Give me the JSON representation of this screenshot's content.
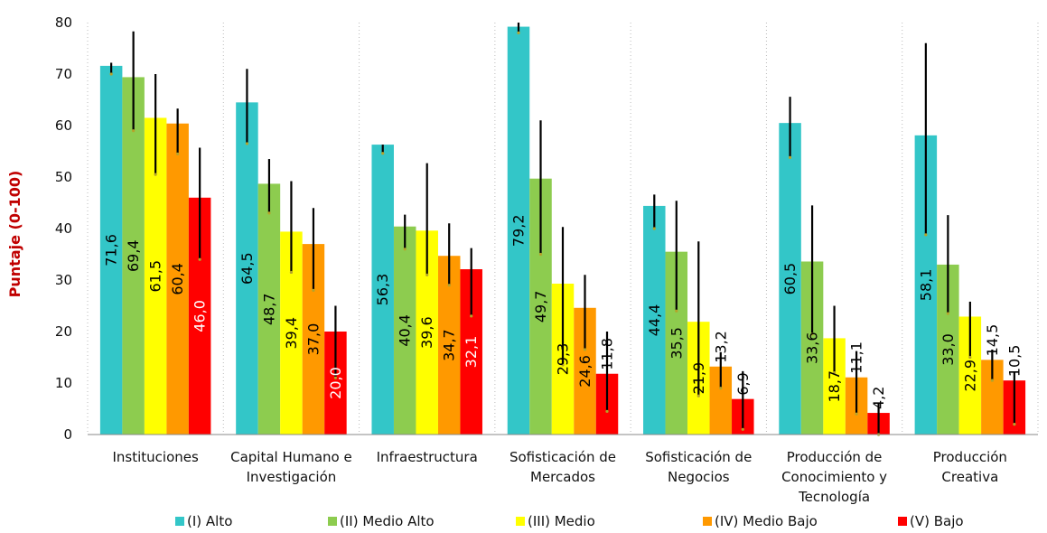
{
  "chart_data": {
    "type": "bar",
    "ylabel": "Puntaje (0-100)",
    "ylim": [
      0,
      80
    ],
    "yticks": [
      0,
      10,
      20,
      30,
      40,
      50,
      60,
      70,
      80
    ],
    "grid": "vertical dotted separators between categories",
    "legend_position": "bottom",
    "value_label_orientation": "vertical",
    "categories": [
      [
        "Instituciones"
      ],
      [
        "Capital Humano e",
        "Investigación"
      ],
      [
        "Infraestructura"
      ],
      [
        "Sofisticación de",
        "Mercados"
      ],
      [
        "Sofisticación de",
        "Negocios"
      ],
      [
        "Producción de",
        "Conocimiento y",
        "Tecnología"
      ],
      [
        "Producción",
        "Creativa"
      ]
    ],
    "series": [
      {
        "name": "(I) Alto",
        "color": "#33c6c8",
        "values": [
          71.6,
          64.5,
          56.3,
          79.2,
          44.4,
          60.5,
          58.1
        ],
        "labels": [
          "71,6",
          "64,5",
          "56,3",
          "79,2",
          "44,4",
          "60,5",
          "58,1"
        ],
        "err_low": [
          70.0,
          56.5,
          54.6,
          78.0,
          40.0,
          53.8,
          38.8
        ],
        "err_high": [
          72.2,
          71.0,
          56.3,
          80.0,
          46.6,
          65.6,
          76.0
        ]
      },
      {
        "name": "(II) Medio Alto",
        "color": "#8dcc4f",
        "values": [
          69.4,
          48.7,
          40.4,
          49.7,
          35.5,
          33.6,
          33.0
        ],
        "labels": [
          "69,4",
          "48,7",
          "40,4",
          "49,7",
          "35,5",
          "33,6",
          "33,0"
        ],
        "err_low": [
          59.0,
          43.0,
          36.0,
          35.0,
          24.0,
          19.5,
          23.5
        ],
        "err_high": [
          78.3,
          53.5,
          42.7,
          61.0,
          45.4,
          44.5,
          42.6
        ]
      },
      {
        "name": "(III) Medio",
        "color": "#ffff00",
        "values": [
          61.5,
          39.4,
          39.6,
          29.3,
          21.9,
          18.7,
          22.9
        ],
        "labels": [
          "61,5",
          "39,4",
          "39,6",
          "29,3",
          "21,9",
          "18,7",
          "22,9"
        ],
        "err_low": [
          50.5,
          31.5,
          31.0,
          13.5,
          7.5,
          12.0,
          15.0
        ],
        "err_high": [
          70.0,
          49.2,
          52.7,
          40.3,
          37.5,
          25.0,
          25.8
        ]
      },
      {
        "name": "(IV) Medio Bajo",
        "color": "#ff9900",
        "values": [
          60.4,
          37.0,
          34.7,
          24.6,
          13.2,
          11.1,
          14.5
        ],
        "labels": [
          "60,4",
          "37,0",
          "34,7",
          "24,6",
          "13,2",
          "11,1",
          "14,5"
        ],
        "err_low": [
          54.5,
          28.0,
          29.0,
          16.5,
          9.0,
          4.0,
          10.5
        ],
        "err_high": [
          63.3,
          44.0,
          41.0,
          31.0,
          16.0,
          16.2,
          16.5
        ]
      },
      {
        "name": "(V) Bajo",
        "color": "#ff0000",
        "values": [
          46.0,
          20.0,
          32.1,
          11.8,
          6.9,
          4.2,
          10.5
        ],
        "labels": [
          "46,0",
          "20,0",
          "32,1",
          "11,8",
          "6,9",
          "4,2",
          "10,5"
        ],
        "err_low": [
          34.0,
          11.0,
          23.0,
          4.5,
          1.0,
          0.0,
          2.0
        ],
        "err_high": [
          55.7,
          25.0,
          36.2,
          20.0,
          12.3,
          6.0,
          12.2
        ]
      }
    ]
  }
}
